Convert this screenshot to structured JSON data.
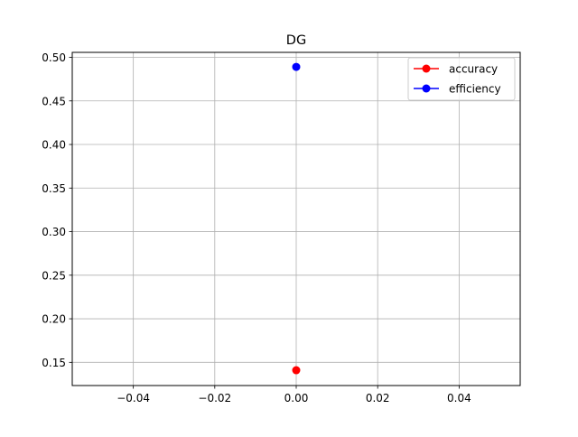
{
  "chart_data": {
    "type": "line",
    "title": "DG",
    "xlabel": "",
    "ylabel": "",
    "xlim": [
      -0.055,
      0.055
    ],
    "ylim": [
      0.1234,
      0.5057
    ],
    "x_ticks": [
      -0.04,
      -0.02,
      0.0,
      0.02,
      0.04
    ],
    "x_tick_labels": [
      "−0.04",
      "−0.02",
      "0.00",
      "0.02",
      "0.04"
    ],
    "y_ticks": [
      0.15,
      0.2,
      0.25,
      0.3,
      0.35,
      0.4,
      0.45,
      0.5
    ],
    "y_tick_labels": [
      "0.15",
      "0.20",
      "0.25",
      "0.30",
      "0.35",
      "0.40",
      "0.45",
      "0.50"
    ],
    "grid": true,
    "legend_position": "upper right",
    "series": [
      {
        "name": "accuracy",
        "color": "#ff0000",
        "x": [
          0
        ],
        "y": [
          0.141
        ]
      },
      {
        "name": "efficiency",
        "color": "#0000ff",
        "x": [
          0
        ],
        "y": [
          0.489
        ]
      }
    ]
  }
}
